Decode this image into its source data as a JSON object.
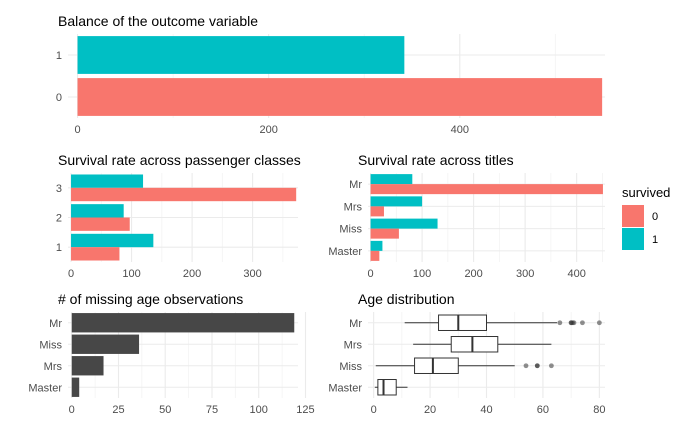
{
  "colors": {
    "c0": "#F8766D",
    "c1": "#00BFC4",
    "dark": "#474747",
    "grid": "#ebebeb"
  },
  "legend": {
    "title": "survived",
    "items": [
      {
        "label": "0",
        "color": "#F8766D"
      },
      {
        "label": "1",
        "color": "#00BFC4"
      }
    ]
  },
  "chart_data": [
    {
      "id": "balance",
      "type": "bar",
      "orientation": "horizontal",
      "title": "Balance of the outcome variable",
      "categories": [
        "0",
        "1"
      ],
      "values": [
        549,
        342
      ],
      "xticks": [
        0,
        200,
        400
      ],
      "xlim": [
        -10,
        552
      ]
    },
    {
      "id": "class",
      "type": "bar",
      "orientation": "horizontal",
      "title": "Survival rate across passenger classes",
      "categories": [
        "1",
        "2",
        "3"
      ],
      "series": [
        {
          "name": "0",
          "values": [
            80,
            97,
            372
          ]
        },
        {
          "name": "1",
          "values": [
            136,
            87,
            119
          ]
        }
      ],
      "xticks": [
        0,
        100,
        200,
        300
      ],
      "xlim": [
        -5,
        375
      ]
    },
    {
      "id": "titles",
      "type": "bar",
      "orientation": "horizontal",
      "title": "Survival rate across titles",
      "categories": [
        "Master",
        "Miss",
        "Mrs",
        "Mr"
      ],
      "series": [
        {
          "name": "0",
          "values": [
            17,
            55,
            26,
            451
          ]
        },
        {
          "name": "1",
          "values": [
            23,
            130,
            100,
            81
          ]
        }
      ],
      "xticks": [
        0,
        100,
        200,
        300,
        400
      ],
      "xlim": [
        -5,
        455
      ]
    },
    {
      "id": "missing",
      "type": "bar",
      "orientation": "horizontal",
      "title": "# of missing age observations",
      "categories": [
        "Master",
        "Mrs",
        "Miss",
        "Mr"
      ],
      "values": [
        4,
        17,
        36,
        119
      ],
      "xticks": [
        0,
        25,
        50,
        75,
        100,
        125
      ],
      "xlim": [
        -2,
        121
      ]
    },
    {
      "id": "age",
      "type": "boxplot",
      "orientation": "horizontal",
      "title": "Age distribution",
      "categories": [
        "Master",
        "Miss",
        "Mrs",
        "Mr"
      ],
      "boxes": [
        {
          "min": 0.42,
          "q1": 1.5,
          "median": 3.5,
          "q3": 8,
          "max": 12,
          "outliers": []
        },
        {
          "min": 0.75,
          "q1": 14.5,
          "median": 21,
          "q3": 30,
          "max": 50,
          "outliers": [
            54,
            58,
            58,
            63
          ]
        },
        {
          "min": 14,
          "q1": 27.5,
          "median": 35,
          "q3": 44,
          "max": 63,
          "outliers": []
        },
        {
          "min": 11,
          "q1": 23,
          "median": 30,
          "q3": 40,
          "max": 65,
          "outliers": [
            66,
            70,
            70,
            70.5,
            71,
            74,
            80
          ]
        }
      ],
      "xticks": [
        0,
        20,
        40,
        60,
        80
      ],
      "xlim": [
        -2,
        82
      ]
    }
  ]
}
